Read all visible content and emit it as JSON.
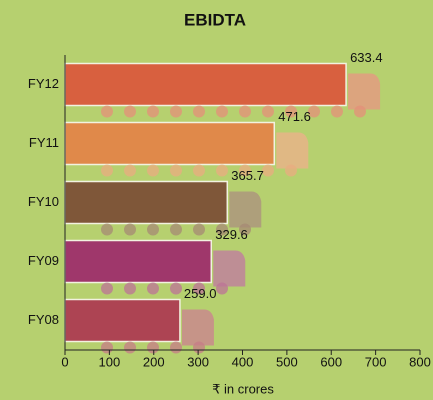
{
  "chart_data": {
    "type": "bar",
    "orientation": "horizontal",
    "title": "EBIDTA",
    "x_label": "₹ in crores",
    "categories": [
      "FY12",
      "FY11",
      "FY10",
      "FY09",
      "FY08"
    ],
    "values": [
      633.4,
      471.6,
      365.7,
      329.6,
      259
    ],
    "value_labels": [
      "633.4",
      "471.6",
      "365.7",
      "329.6",
      "259.0"
    ],
    "colors": [
      "#d8603f",
      "#e0894a",
      "#7f5739",
      "#9f376b",
      "#ad4453"
    ],
    "xlim": [
      0,
      800
    ],
    "xticks": [
      0,
      100,
      200,
      300,
      400,
      500,
      600,
      700,
      800
    ]
  }
}
